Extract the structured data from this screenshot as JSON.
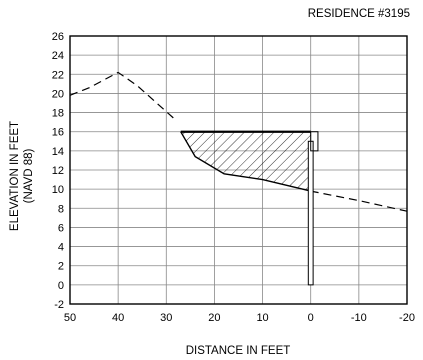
{
  "chart_data": {
    "type": "line",
    "title": "RESIDENCE #3195",
    "xlabel": "DISTANCE IN FEET",
    "ylabel": "ELEVATION IN FEET",
    "ylabel2": "(NAVD 88)",
    "xlim": [
      50,
      -20
    ],
    "ylim": [
      -2,
      26
    ],
    "x_ticks": [
      50,
      40,
      30,
      20,
      10,
      0,
      -10,
      -20
    ],
    "x_tick_labels": [
      "50",
      "40",
      "30",
      "20",
      "10",
      "0",
      "-10",
      "-20"
    ],
    "y_ticks": [
      -2,
      0,
      2,
      4,
      6,
      8,
      10,
      12,
      14,
      16,
      18,
      20,
      22,
      24,
      26
    ],
    "y_tick_labels": [
      "-2",
      "0",
      "2",
      "4",
      "6",
      "8",
      "10",
      "12",
      "14",
      "16",
      "18",
      "20",
      "22",
      "24",
      "26"
    ],
    "grid": true,
    "ground_profile": {
      "style": "dashed",
      "x": [
        50,
        46,
        40,
        36,
        28
      ],
      "y": [
        19.8,
        20.6,
        22.2,
        20.8,
        17.2
      ]
    },
    "ground_profile_solid": {
      "style": "solid",
      "x": [
        27,
        24,
        18,
        10,
        0
      ],
      "y": [
        16,
        13.4,
        11.6,
        11,
        9.8
      ]
    },
    "ground_profile_dashed_right": {
      "style": "dashed",
      "x": [
        0,
        -10,
        -20
      ],
      "y": [
        9.8,
        8.8,
        7.7
      ]
    },
    "fill_region": {
      "pattern": "hatched",
      "x": [
        27,
        0,
        0,
        10,
        18,
        24
      ],
      "y": [
        16,
        16,
        9.8,
        11,
        11.6,
        13.4
      ]
    },
    "structure": {
      "top_elevation": 16,
      "top_left_x": 27,
      "top_right_x": 0,
      "pile_left_x": 0.5,
      "pile_right_x": -0.5,
      "pile_bottom_y": 0,
      "pile_top_y": 15,
      "cap_left_x": 0,
      "cap_right_x": -1.5,
      "cap_top_y": 16,
      "cap_bottom_y": 14
    }
  }
}
